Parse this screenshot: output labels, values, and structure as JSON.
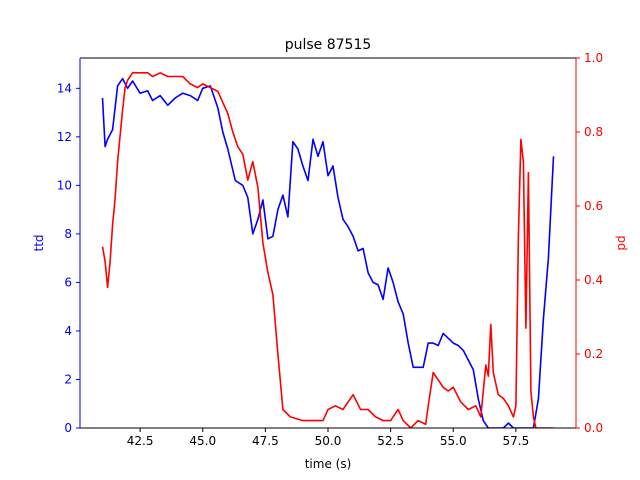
{
  "chart_data": {
    "type": "line",
    "title": "pulse 87515",
    "xlabel": "time (s)",
    "ylabel_left": "ttd",
    "ylabel_right": "pd",
    "xlim": [
      40.1,
      59.9
    ],
    "ylim_left": [
      0,
      15.25
    ],
    "ylim_right": [
      0,
      1.0
    ],
    "x_ticks": [
      42.5,
      45.0,
      47.5,
      50.0,
      52.5,
      55.0,
      57.5
    ],
    "x_tick_labels": [
      "42.5",
      "45.0",
      "47.5",
      "50.0",
      "52.5",
      "55.0",
      "57.5"
    ],
    "y_left_ticks": [
      0,
      2,
      4,
      6,
      8,
      10,
      12,
      14
    ],
    "y_left_tick_labels": [
      "0",
      "2",
      "4",
      "6",
      "8",
      "10",
      "12",
      "14"
    ],
    "y_right_ticks": [
      0.0,
      0.2,
      0.4,
      0.6,
      0.8,
      1.0
    ],
    "y_right_tick_labels": [
      "0.0",
      "0.2",
      "0.4",
      "0.6",
      "0.8",
      "1.0"
    ],
    "grid": false,
    "colors": {
      "ttd": "#0000ff",
      "pd": "#ff0000",
      "axes": "#000000"
    },
    "series": [
      {
        "axis": "left",
        "color": "#0000ff",
        "x": [
          41.0,
          41.1,
          41.2,
          41.4,
          41.6,
          41.8,
          42.0,
          42.2,
          42.5,
          42.8,
          43.0,
          43.3,
          43.6,
          43.9,
          44.2,
          44.5,
          44.8,
          45.0,
          45.3,
          45.6,
          45.8,
          46.0,
          46.3,
          46.6,
          46.8,
          47.0,
          47.2,
          47.4,
          47.6,
          47.8,
          48.0,
          48.2,
          48.4,
          48.6,
          48.8,
          49.0,
          49.2,
          49.4,
          49.6,
          49.8,
          50.0,
          50.2,
          50.4,
          50.6,
          50.8,
          51.0,
          51.2,
          51.4,
          51.6,
          51.8,
          52.0,
          52.2,
          52.4,
          52.6,
          52.8,
          53.0,
          53.2,
          53.4,
          53.6,
          53.8,
          54.0,
          54.2,
          54.4,
          54.6,
          54.8,
          55.0,
          55.2,
          55.4,
          55.6,
          55.8,
          56.0,
          56.2,
          56.4,
          56.6,
          56.8,
          57.0,
          57.2,
          57.4,
          57.6,
          57.8,
          58.0,
          58.2,
          58.4,
          58.6,
          58.8,
          59.0
        ],
        "y": [
          13.6,
          11.6,
          11.9,
          12.3,
          14.1,
          14.4,
          14.0,
          14.3,
          13.8,
          13.9,
          13.5,
          13.7,
          13.3,
          13.6,
          13.8,
          13.7,
          13.5,
          14.0,
          14.1,
          13.2,
          12.2,
          11.5,
          10.2,
          10.0,
          9.5,
          8.0,
          8.6,
          9.4,
          7.8,
          7.9,
          9.0,
          9.6,
          8.7,
          11.8,
          11.5,
          10.8,
          10.2,
          11.9,
          11.2,
          11.8,
          10.4,
          10.8,
          9.5,
          8.6,
          8.3,
          7.9,
          7.3,
          7.4,
          6.4,
          6.0,
          5.9,
          5.3,
          6.6,
          6.0,
          5.2,
          4.7,
          3.5,
          2.5,
          2.5,
          2.5,
          3.5,
          3.5,
          3.4,
          3.9,
          3.7,
          3.5,
          3.4,
          3.2,
          2.8,
          2.4,
          1.2,
          0.3,
          0.0,
          0.0,
          0.0,
          0.0,
          0.2,
          0.0,
          0.0,
          0.0,
          0.0,
          0.0,
          1.2,
          4.5,
          7.0,
          11.2
        ]
      },
      {
        "axis": "right",
        "color": "#ff0000",
        "x": [
          41.0,
          41.1,
          41.2,
          41.3,
          41.4,
          41.5,
          41.6,
          41.7,
          41.8,
          41.9,
          42.0,
          42.2,
          42.5,
          42.8,
          43.0,
          43.3,
          43.6,
          43.9,
          44.2,
          44.5,
          44.8,
          45.0,
          45.3,
          45.6,
          45.8,
          46.0,
          46.2,
          46.4,
          46.6,
          46.8,
          47.0,
          47.2,
          47.4,
          47.6,
          47.8,
          48.0,
          48.2,
          48.5,
          49.0,
          49.5,
          49.8,
          50.0,
          50.3,
          50.6,
          50.9,
          51.0,
          51.3,
          51.6,
          51.9,
          52.2,
          52.5,
          52.8,
          53.0,
          53.3,
          53.6,
          53.9,
          54.0,
          54.2,
          54.4,
          54.6,
          54.8,
          55.0,
          55.3,
          55.6,
          55.9,
          56.1,
          56.3,
          56.4,
          56.5,
          56.6,
          56.8,
          57.0,
          57.2,
          57.4,
          57.5,
          57.6,
          57.7,
          57.8,
          57.9,
          58.0,
          58.1,
          58.2,
          58.3,
          58.6,
          59.0
        ],
        "y": [
          0.49,
          0.45,
          0.38,
          0.45,
          0.55,
          0.62,
          0.72,
          0.79,
          0.86,
          0.92,
          0.94,
          0.96,
          0.96,
          0.96,
          0.95,
          0.96,
          0.95,
          0.95,
          0.95,
          0.93,
          0.92,
          0.93,
          0.92,
          0.91,
          0.88,
          0.85,
          0.8,
          0.76,
          0.74,
          0.67,
          0.72,
          0.65,
          0.5,
          0.42,
          0.36,
          0.2,
          0.05,
          0.03,
          0.02,
          0.02,
          0.02,
          0.05,
          0.06,
          0.05,
          0.08,
          0.09,
          0.05,
          0.05,
          0.03,
          0.02,
          0.02,
          0.05,
          0.02,
          0.0,
          0.02,
          0.01,
          0.06,
          0.15,
          0.13,
          0.11,
          0.1,
          0.11,
          0.07,
          0.05,
          0.06,
          0.03,
          0.17,
          0.14,
          0.28,
          0.15,
          0.09,
          0.08,
          0.06,
          0.03,
          0.06,
          0.52,
          0.78,
          0.72,
          0.27,
          0.69,
          0.1,
          0.03,
          0.0,
          0.0,
          0.0
        ]
      }
    ]
  }
}
